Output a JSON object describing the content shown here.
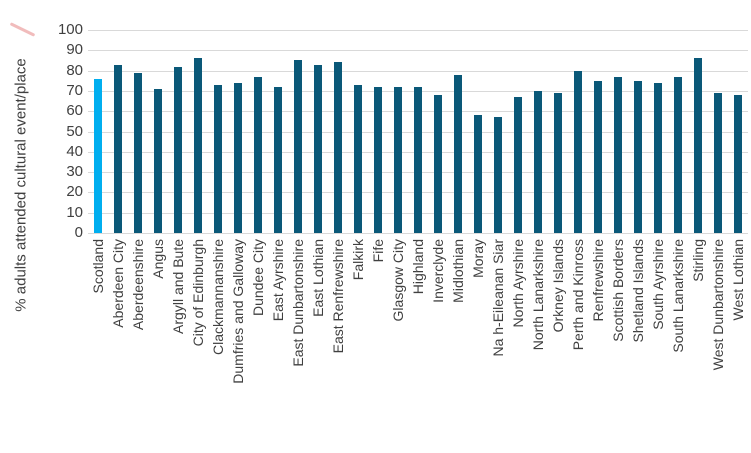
{
  "chart_data": {
    "type": "bar",
    "title": "",
    "xlabel": "",
    "ylabel": "% adults attended cultural event/place",
    "ylim": [
      0,
      100
    ],
    "ytick_step": 10,
    "grid": true,
    "legend_position": "none",
    "highlight_category": "Scotland",
    "highlight_index": 0,
    "categories": [
      "Scotland",
      "Aberdeen City",
      "Aberdeenshire",
      "Angus",
      "Argyll and Bute",
      "City of Edinburgh",
      "Clackmannanshire",
      "Dumfries and Galloway",
      "Dundee City",
      "East Ayrshire",
      "East Dunbartonshire",
      "East Lothian",
      "East Renfrewshire",
      "Falkirk",
      "Fife",
      "Glasgow City",
      "Highland",
      "Inverclyde",
      "Midlothian",
      "Moray",
      "Na h-Eileanan Siar",
      "North Ayrshire",
      "North Lanarkshire",
      "Orkney Islands",
      "Perth and Kinross",
      "Renfrewshire",
      "Scottish Borders",
      "Shetland Islands",
      "South Ayrshire",
      "South Lanarkshire",
      "Stirling",
      "West Dunbartonshire",
      "West Lothian"
    ],
    "values": [
      76,
      83,
      79,
      71,
      82,
      86,
      73,
      74,
      77,
      72,
      85,
      83,
      84,
      73,
      72,
      72,
      72,
      68,
      78,
      58,
      57,
      67,
      70,
      69,
      80,
      75,
      77,
      75,
      74,
      77,
      86,
      69,
      68
    ]
  },
  "colors": {
    "bar_default": "#0A5878",
    "bar_highlight": "#00AEEF",
    "gridline": "#D9D9D9",
    "axis_text": "#404040",
    "background": "#FFFFFF",
    "annotation_stroke": "#E06A6A"
  }
}
